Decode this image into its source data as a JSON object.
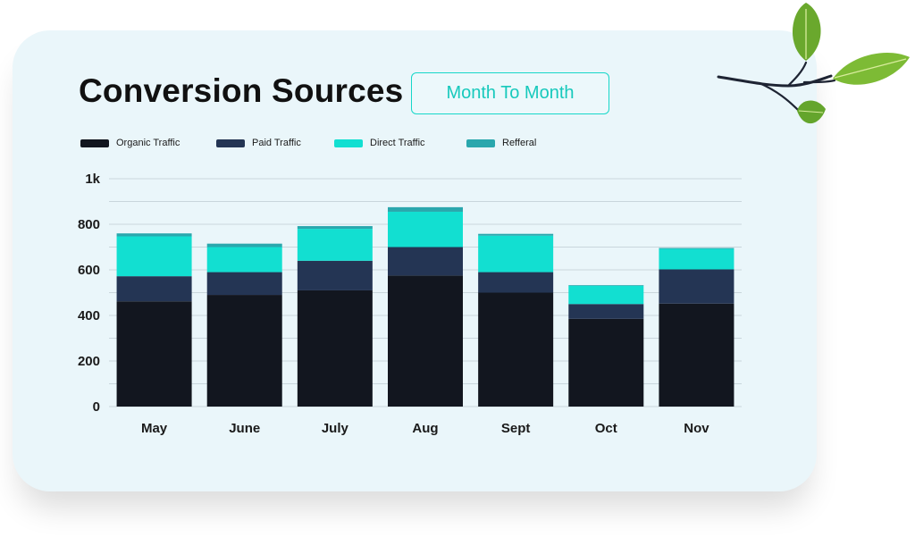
{
  "header": {
    "title": "Conversion Sources",
    "period_button": "Month To Month"
  },
  "colors": {
    "organic": "#12161f",
    "paid": "#243554",
    "direct": "#12dfd1",
    "referral": "#2aa7ad",
    "accent": "#16d7c9",
    "card_bg": "#eaf6fa"
  },
  "chart_data": {
    "type": "bar",
    "stacked": true,
    "categories": [
      "May",
      "June",
      "July",
      "Aug",
      "Sept",
      "Oct",
      "Nov"
    ],
    "series": [
      {
        "name": "Organic Traffic",
        "values": [
          462,
          490,
          510,
          575,
          500,
          385,
          452
        ]
      },
      {
        "name": "Paid Traffic",
        "values": [
          110,
          100,
          130,
          125,
          90,
          65,
          150
        ]
      },
      {
        "name": "Direct Traffic",
        "values": [
          175,
          110,
          140,
          155,
          160,
          80,
          90
        ]
      },
      {
        "name": "Refferal",
        "values": [
          13,
          15,
          12,
          20,
          8,
          3,
          4
        ]
      }
    ],
    "ylim": [
      0,
      1000
    ],
    "yticks": [
      0,
      200,
      400,
      600,
      800,
      1000
    ],
    "ytick_labels": [
      "0",
      "200",
      "400",
      "600",
      "800",
      "1k"
    ],
    "grid": true,
    "legend_position": "top-left"
  }
}
